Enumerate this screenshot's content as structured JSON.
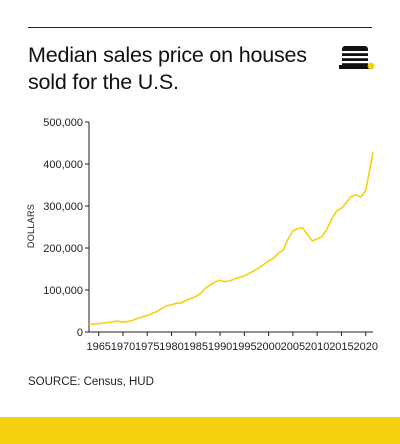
{
  "header": {
    "title": "Median sales price on houses sold for the U.S."
  },
  "logo": {
    "icon": "beehive-icon",
    "color": "#111111",
    "dot_color": "#f5d10f"
  },
  "footer": {
    "source": "SOURCE: Census, HUD",
    "band_color": "#f5d10f"
  },
  "chart_data": {
    "type": "line",
    "title": "Median sales price on houses sold for the U.S.",
    "xlabel": "",
    "ylabel": "DOLLARS",
    "xlim": [
      1963,
      2021.5
    ],
    "ylim": [
      0,
      500000
    ],
    "x_ticks": [
      1965,
      1970,
      1975,
      1980,
      1985,
      1990,
      1995,
      2000,
      2005,
      2010,
      2015,
      2020
    ],
    "y_ticks": [
      0,
      100000,
      200000,
      300000,
      400000,
      500000
    ],
    "y_tick_labels": [
      "0",
      "100,000",
      "200,000",
      "300,000",
      "400,000",
      "500,000"
    ],
    "grid": false,
    "line_color": "#f5d10f",
    "series": [
      {
        "x": [
          1963,
          1964,
          1965,
          1966,
          1967,
          1968,
          1969,
          1970,
          1971,
          1972,
          1973,
          1974,
          1975,
          1976,
          1977,
          1978,
          1979,
          1980,
          1981,
          1982,
          1983,
          1984,
          1985,
          1986,
          1987,
          1988,
          1989,
          1990,
          1991,
          1992,
          1993,
          1994,
          1995,
          1996,
          1997,
          1998,
          1999,
          2000,
          2001,
          2002,
          2003,
          2004,
          2005,
          2006,
          2007,
          2008,
          2009,
          2010,
          2011,
          2012,
          2013,
          2014,
          2015,
          2016,
          2017,
          2018,
          2019,
          2020,
          2021,
          2021.5
        ],
        "values": [
          17800,
          18900,
          20000,
          21400,
          22700,
          24700,
          25600,
          23400,
          25200,
          27600,
          32500,
          35900,
          39300,
          44200,
          48800,
          55700,
          62900,
          64600,
          68900,
          69300,
          75300,
          79900,
          84300,
          92000,
          104500,
          112500,
          120000,
          122900,
          120000,
          121500,
          126500,
          130000,
          133900,
          140000,
          146000,
          152500,
          161000,
          169000,
          175200,
          187600,
          195000,
          221000,
          240900,
          246500,
          247900,
          232100,
          216700,
          221800,
          227200,
          245200,
          268900,
          288500,
          294200,
          307800,
          323100,
          326400,
          321500,
          336900,
          397100,
          428700
        ]
      }
    ]
  }
}
